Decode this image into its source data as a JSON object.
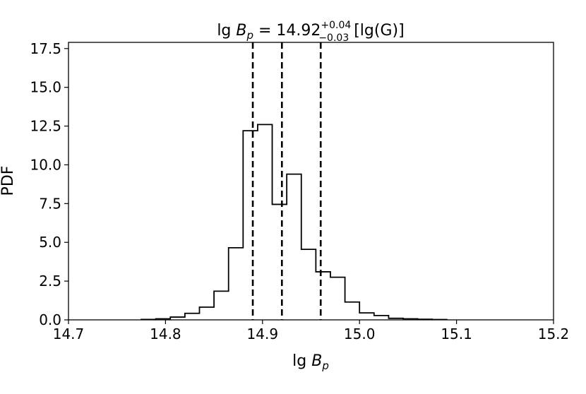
{
  "chart_data": {
    "type": "histogram",
    "title": {
      "prefix": "lg ",
      "symbol": "B",
      "subscript": "p",
      "equals": " = 14.92",
      "sup": "+0.04",
      "sub": "−0.03",
      "unit": " [lg(G)]"
    },
    "xlabel": {
      "prefix": "lg ",
      "symbol": "B",
      "subscript": "p"
    },
    "ylabel": "PDF",
    "xlim": [
      14.7,
      15.2
    ],
    "ylim": [
      0,
      17.9
    ],
    "xticks": [
      "14.7",
      "14.8",
      "14.9",
      "15.0",
      "15.1",
      "15.2"
    ],
    "yticks": [
      "0.0",
      "2.5",
      "5.0",
      "7.5",
      "10.0",
      "12.5",
      "15.0",
      "17.5"
    ],
    "bin_edges": [
      14.775,
      14.79,
      14.805,
      14.82,
      14.835,
      14.85,
      14.865,
      14.88,
      14.895,
      14.91,
      14.925,
      14.94,
      14.955,
      14.97,
      14.985,
      15.0,
      15.015,
      15.03,
      15.045,
      15.06,
      15.075,
      15.09
    ],
    "values": [
      0.03,
      0.07,
      0.18,
      0.42,
      0.82,
      1.85,
      4.65,
      12.2,
      12.6,
      7.45,
      9.4,
      4.55,
      3.1,
      2.75,
      1.15,
      0.45,
      0.28,
      0.1,
      0.07,
      0.04,
      0.02
    ],
    "vlines": [
      14.89,
      14.92,
      14.96
    ],
    "grid": false,
    "colors": {
      "line": "#000000",
      "background": "#ffffff"
    }
  }
}
